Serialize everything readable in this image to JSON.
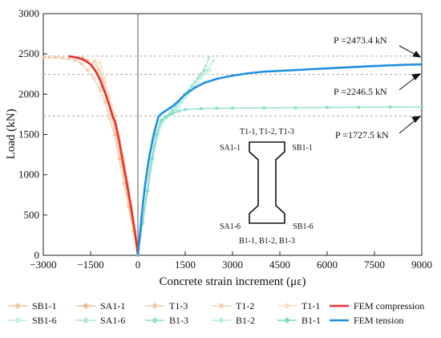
{
  "chart_data": {
    "type": "line",
    "xlabel": "Concrete strain increment (με)",
    "ylabel": "Load (kN)",
    "xlim": [
      -3000,
      9000
    ],
    "ylim": [
      0,
      3000
    ],
    "xticks": [
      "−3000",
      "−1500",
      "0",
      "1500",
      "3000",
      "4500",
      "6000",
      "7500",
      "9000"
    ],
    "xtick_values": [
      -3000,
      -1500,
      0,
      1500,
      3000,
      4500,
      6000,
      7500,
      9000
    ],
    "yticks": [
      "0",
      "500",
      "1000",
      "1500",
      "2000",
      "2500",
      "3000"
    ],
    "ytick_values": [
      0,
      500,
      1000,
      1500,
      2000,
      2500,
      3000
    ],
    "reference_lines": [
      {
        "value": 2473.4,
        "label": "P =2473.4 kN"
      },
      {
        "value": 2246.5,
        "label": "P =2246.5 kN"
      },
      {
        "value": 1727.5,
        "label": "P =1727.5 kN"
      }
    ],
    "series": [
      {
        "name": "SB1-1",
        "color": "#f0c9a0",
        "x": [
          0,
          -150,
          -300,
          -450,
          -600,
          -750,
          -900,
          -1050,
          -1200,
          -1400,
          -1600,
          -1800,
          -2000,
          -2200,
          -2400,
          -2600,
          -2800,
          -3000
        ],
        "y": [
          0,
          300,
          600,
          900,
          1200,
          1500,
          1700,
          1900,
          2050,
          2200,
          2300,
          2380,
          2420,
          2440,
          2450,
          2455,
          2455,
          2455
        ]
      },
      {
        "name": "SA1-1",
        "color": "#f2b98c",
        "x": [
          0,
          -120,
          -260,
          -400,
          -550,
          -700,
          -850,
          -1000,
          -1150,
          -1300,
          -1450,
          -1600,
          -1750
        ],
        "y": [
          0,
          300,
          600,
          900,
          1200,
          1500,
          1750,
          1950,
          2100,
          2250,
          2350,
          2420,
          2450
        ]
      },
      {
        "name": "T1-3",
        "color": "#f4c8a4",
        "x": [
          0,
          -100,
          -220,
          -360,
          -500,
          -650,
          -800,
          -950,
          -1100,
          -1250,
          -1400
        ],
        "y": [
          0,
          300,
          600,
          900,
          1200,
          1500,
          1750,
          1950,
          2150,
          2300,
          2400
        ]
      },
      {
        "name": "T1-2",
        "color": "#f6d3b3",
        "x": [
          0,
          -90,
          -200,
          -330,
          -470,
          -620,
          -780,
          -930,
          -1080,
          -1220,
          -1350
        ],
        "y": [
          0,
          300,
          600,
          900,
          1200,
          1500,
          1750,
          1950,
          2150,
          2320,
          2420
        ]
      },
      {
        "name": "T1-1",
        "color": "#f8dfc6",
        "x": [
          0,
          -80,
          -180,
          -300,
          -440,
          -590,
          -740,
          -900,
          -1050,
          -1200
        ],
        "y": [
          0,
          300,
          600,
          900,
          1200,
          1500,
          1750,
          1980,
          2200,
          2400
        ]
      },
      {
        "name": "FEM compression",
        "color": "#e8302f",
        "x": [
          0,
          -80,
          -200,
          -330,
          -470,
          -610,
          -720,
          -800,
          -900,
          -1000,
          -1100,
          -1200,
          -1300,
          -1400,
          -1500,
          -1650,
          -1800,
          -1950,
          -2100,
          -2200
        ],
        "y": [
          0,
          250,
          550,
          850,
          1150,
          1450,
          1650,
          1730,
          1850,
          1970,
          2080,
          2180,
          2260,
          2320,
          2370,
          2410,
          2440,
          2455,
          2465,
          2473.4
        ]
      },
      {
        "name": "SB1-6",
        "color": "#c6efe6",
        "x": [
          0,
          150,
          300,
          450,
          600,
          750,
          900,
          1100,
          1300,
          1500,
          1700,
          1900,
          2100,
          2300
        ],
        "y": [
          0,
          400,
          800,
          1200,
          1500,
          1650,
          1720,
          1780,
          1850,
          1950,
          2050,
          2150,
          2250,
          2300
        ]
      },
      {
        "name": "SA1-6",
        "color": "#a9e6d9",
        "x": [
          0,
          140,
          280,
          420,
          560,
          700,
          850,
          1000,
          1200,
          1400,
          1600,
          1800,
          2000,
          2150,
          2250
        ],
        "y": [
          0,
          400,
          800,
          1200,
          1500,
          1660,
          1720,
          1760,
          1850,
          1950,
          2050,
          2150,
          2250,
          2350,
          2450
        ]
      },
      {
        "name": "B1-3",
        "color": "#8fdfcd",
        "x": [
          0,
          150,
          300,
          450,
          600,
          750,
          900,
          1100,
          1300,
          1500,
          1700,
          1900,
          2100
        ],
        "y": [
          0,
          400,
          800,
          1200,
          1500,
          1680,
          1720,
          1800,
          1900,
          2000,
          2100,
          2200,
          2300
        ]
      },
      {
        "name": "B1-2",
        "color": "#b8ecdf",
        "x": [
          0,
          160,
          320,
          480,
          640,
          800,
          1000,
          1200,
          1400,
          1600,
          1800,
          2000,
          2200,
          2400
        ],
        "y": [
          0,
          400,
          800,
          1200,
          1500,
          1660,
          1730,
          1800,
          1900,
          2000,
          2100,
          2200,
          2300,
          2420
        ]
      },
      {
        "name": "B1-1",
        "color": "#7dd9c4",
        "x": [
          0,
          150,
          300,
          450,
          600,
          750,
          900,
          1100,
          1300,
          1500,
          2000,
          2500,
          3000,
          4000,
          5000,
          6000,
          7000,
          8000,
          9000
        ],
        "y": [
          0,
          400,
          800,
          1200,
          1500,
          1680,
          1720,
          1760,
          1790,
          1810,
          1820,
          1825,
          1827,
          1830,
          1832,
          1835,
          1838,
          1840,
          1842
        ]
      },
      {
        "name": "FEM tension",
        "color": "#1f8fe0",
        "x": [
          0,
          50,
          120,
          220,
          350,
          500,
          650,
          750,
          900,
          1100,
          1300,
          1500,
          1800,
          2100,
          2500,
          3000,
          3500,
          4000,
          4500,
          5500,
          6500,
          7500,
          8500,
          9000
        ],
        "y": [
          0,
          200,
          500,
          850,
          1200,
          1500,
          1720,
          1760,
          1800,
          1850,
          1920,
          2000,
          2080,
          2140,
          2190,
          2230,
          2260,
          2280,
          2290,
          2310,
          2330,
          2350,
          2365,
          2370
        ]
      }
    ],
    "legend_placement": "bottom"
  },
  "annotations": {
    "p1": "P =2473.4 kN",
    "p2": "P =2246.5 kN",
    "p3": "P =1727.5 kN"
  },
  "diagram": {
    "top_label": "T1-1, T1-2, T1-3",
    "left_top": "SA1-1",
    "right_top": "SB1-1",
    "left_bottom": "SA1-6",
    "right_bottom": "SB1-6",
    "bottom_label": "B1-1, B1-2, B1-3"
  },
  "legend": {
    "row1": [
      "SB1-1",
      "SA1-1",
      "T1-3",
      "T1-2",
      "T1-1",
      "FEM compression"
    ],
    "row2": [
      "SB1-6",
      "SA1-6",
      "B1-3",
      "B1-2",
      "B1-1",
      "FEM tension"
    ]
  }
}
